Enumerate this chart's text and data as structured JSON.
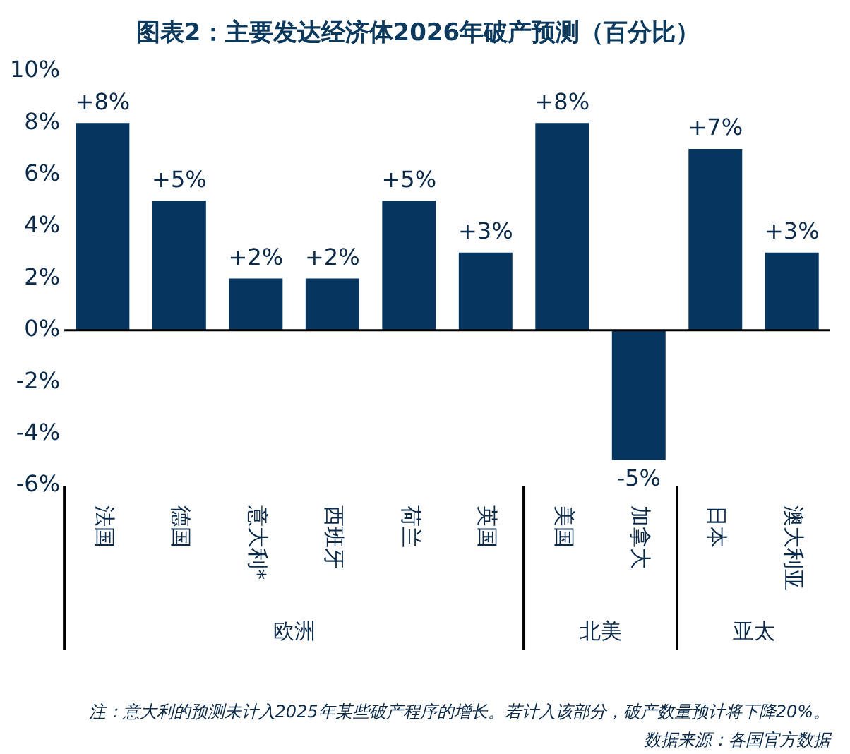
{
  "chart_data": {
    "type": "bar",
    "title": "图表2：主要发达经济体2026年破产预测（百分比）",
    "categories": [
      "法国",
      "德国",
      "意大利*",
      "西班牙",
      "荷兰",
      "英国",
      "美国",
      "加拿大",
      "日本",
      "澳大利亚"
    ],
    "values": [
      8,
      5,
      2,
      2,
      5,
      3,
      8,
      -5,
      7,
      3
    ],
    "value_labels": [
      "+8%",
      "+5%",
      "+2%",
      "+2%",
      "+5%",
      "+3%",
      "+8%",
      "-5%",
      "+7%",
      "+3%"
    ],
    "color": "#063660",
    "ylim": [
      -6,
      10
    ],
    "yticks": [
      {
        "value": -6,
        "label": "-6%"
      },
      {
        "value": -4,
        "label": "-4%"
      },
      {
        "value": -2,
        "label": "-2%"
      },
      {
        "value": 0,
        "label": "0%"
      },
      {
        "value": 2,
        "label": "2%"
      },
      {
        "value": 4,
        "label": "4%"
      },
      {
        "value": 6,
        "label": "6%"
      },
      {
        "value": 8,
        "label": "8%"
      },
      {
        "value": 10,
        "label": "10%"
      }
    ],
    "grid": false,
    "ref_lines": [
      {
        "axis": "y",
        "value": 0,
        "color": "#000000"
      }
    ],
    "annotations": [
      "欧洲",
      "北美",
      "亚太",
      "注：意大利的预测未计入2025年某些破产程序的增长。若计入该部分，破产数量预计将下降20%。",
      "数据来源：各国官方数据"
    ]
  }
}
